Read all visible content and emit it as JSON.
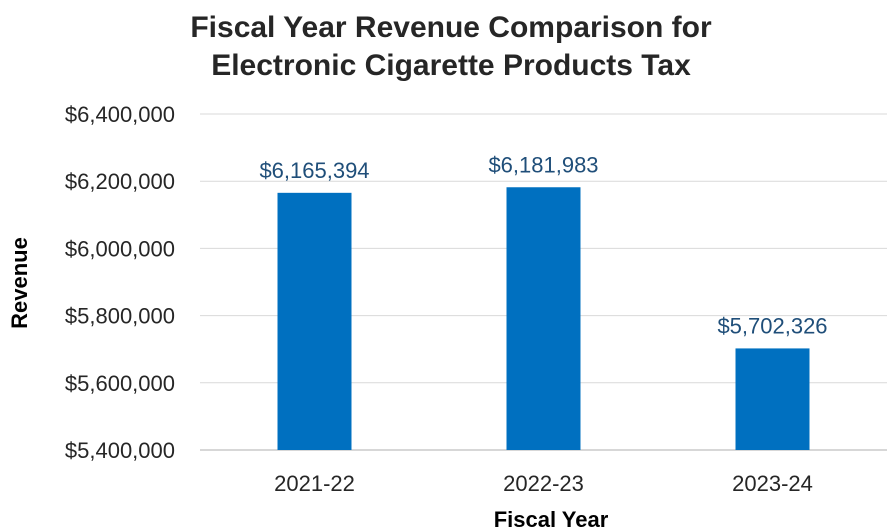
{
  "chart_data": {
    "type": "bar",
    "title": [
      "Fiscal Year Revenue Comparison for",
      "Electronic Cigarette Products Tax"
    ],
    "xlabel": "Fiscal Year",
    "ylabel": "Revenue",
    "categories": [
      "2021-22",
      "2022-23",
      "2023-24"
    ],
    "values": [
      6165394,
      6181983,
      5702326
    ],
    "data_labels": [
      "$6,165,394",
      "$6,181,983",
      "$5,702,326"
    ],
    "ylim": [
      5400000,
      6400000
    ],
    "yticks": [
      5400000,
      5600000,
      5800000,
      6000000,
      6200000,
      6400000
    ],
    "ytick_labels": [
      "$5,400,000",
      "$5,600,000",
      "$5,800,000",
      "$6,000,000",
      "$6,200,000",
      "$6,400,000"
    ],
    "grid": true,
    "legend": "none",
    "colors": {
      "bar": "#0070c0",
      "data_label": "#1f4e79"
    }
  }
}
